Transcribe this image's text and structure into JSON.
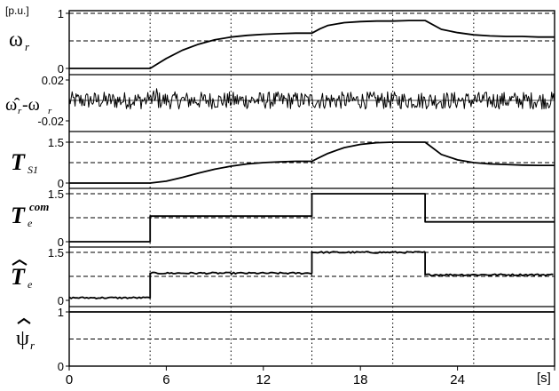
{
  "unit_label": "[p.u.]",
  "x_unit_label": "[s]",
  "chart_data": {
    "type": "line",
    "x_axis": {
      "range": [
        0,
        30
      ],
      "ticks": [
        0,
        6,
        12,
        18,
        24
      ],
      "tick_labels": [
        "0",
        "6",
        "12",
        "18",
        "24"
      ],
      "unit": "[s]",
      "grid_lines": [
        5,
        10,
        15,
        20,
        25
      ]
    },
    "panels": [
      {
        "id": "omega_r",
        "label": "ω",
        "label_sub": "r",
        "ylim": [
          0,
          1
        ],
        "yticks": [
          0,
          1
        ],
        "ytick_labels": [
          "0",
          "1"
        ],
        "grid": [
          0.5,
          1
        ],
        "series": [
          {
            "x": [
              0,
              5,
              5.5,
              6,
              7,
              8,
              9,
              10,
              11,
              12,
              13,
              14,
              15,
              15.5,
              16,
              17,
              18,
              19,
              20,
              21,
              22,
              23,
              24,
              25,
              26,
              27,
              28,
              29,
              30
            ],
            "y": [
              0,
              0,
              0.09,
              0.18,
              0.33,
              0.44,
              0.52,
              0.57,
              0.6,
              0.62,
              0.63,
              0.64,
              0.64,
              0.72,
              0.78,
              0.83,
              0.85,
              0.86,
              0.86,
              0.87,
              0.87,
              0.71,
              0.65,
              0.61,
              0.59,
              0.58,
              0.58,
              0.57,
              0.57
            ]
          }
        ]
      },
      {
        "id": "omega_error",
        "label": "ω̂",
        "label_sub": "r",
        "label_mid": "-ω",
        "label_sub2": "r",
        "ylim": [
          -0.02,
          0.02
        ],
        "yticks": [
          0.02,
          -0.02
        ],
        "ytick_labels": [
          "0.02",
          "-0.02"
        ],
        "grid": [
          0
        ],
        "series": [
          {
            "x": [
              0,
              30
            ],
            "y": [
              0,
              0
            ],
            "note": "noise ±0.01 around zero"
          }
        ]
      },
      {
        "id": "T_S1",
        "label": "T",
        "label_sub": "S1",
        "ylim": [
          0,
          1.5
        ],
        "yticks": [
          0,
          1.5
        ],
        "ytick_labels": [
          "0",
          "1.5"
        ],
        "grid": [
          0.75,
          1.5
        ],
        "series": [
          {
            "x": [
              0,
              5,
              6,
              7,
              8,
              9,
              10,
              11,
              12,
              13,
              14,
              15,
              15.5,
              16,
              17,
              18,
              19,
              20,
              21,
              22,
              23,
              24,
              25,
              26,
              27,
              28,
              29,
              30
            ],
            "y": [
              0,
              0,
              0.07,
              0.21,
              0.37,
              0.51,
              0.62,
              0.7,
              0.75,
              0.78,
              0.8,
              0.8,
              0.95,
              1.09,
              1.3,
              1.42,
              1.48,
              1.5,
              1.5,
              1.5,
              1.05,
              0.85,
              0.75,
              0.7,
              0.68,
              0.66,
              0.65,
              0.65
            ]
          }
        ]
      },
      {
        "id": "T_e_com",
        "label": "T",
        "label_sub": "e",
        "label_sup": "com",
        "ylim": [
          0,
          1.5
        ],
        "yticks": [
          0,
          1.5
        ],
        "ytick_labels": [
          "0",
          "1.5"
        ],
        "grid": [
          0.75,
          1.5
        ],
        "series": [
          {
            "x": [
              0,
              5,
              5,
              15,
              15,
              22,
              22,
              30
            ],
            "y": [
              0,
              0,
              0.8,
              0.8,
              1.5,
              1.5,
              0.62,
              0.62
            ]
          }
        ]
      },
      {
        "id": "T_e_hat",
        "label": "T",
        "label_sub": "e",
        "ylim": [
          0,
          1.5
        ],
        "yticks": [
          0,
          1.5
        ],
        "ytick_labels": [
          "0",
          "1.5"
        ],
        "grid": [
          0.75,
          1.5
        ],
        "series": [
          {
            "x": [
              0,
              5,
              5,
              15,
              15,
              22,
              22,
              30
            ],
            "y": [
              0.08,
              0.08,
              0.85,
              0.85,
              1.5,
              1.5,
              0.8,
              0.8
            ],
            "note": "slight noise"
          }
        ]
      },
      {
        "id": "psi_r_hat",
        "label": "ψ",
        "label_sub": "r",
        "ylim": [
          0,
          1
        ],
        "yticks": [
          0,
          1
        ],
        "ytick_labels": [
          "0",
          "1"
        ],
        "grid": [
          0.5,
          1
        ],
        "series": [
          {
            "x": [
              0,
              30
            ],
            "y": [
              1,
              1
            ]
          }
        ]
      }
    ]
  }
}
